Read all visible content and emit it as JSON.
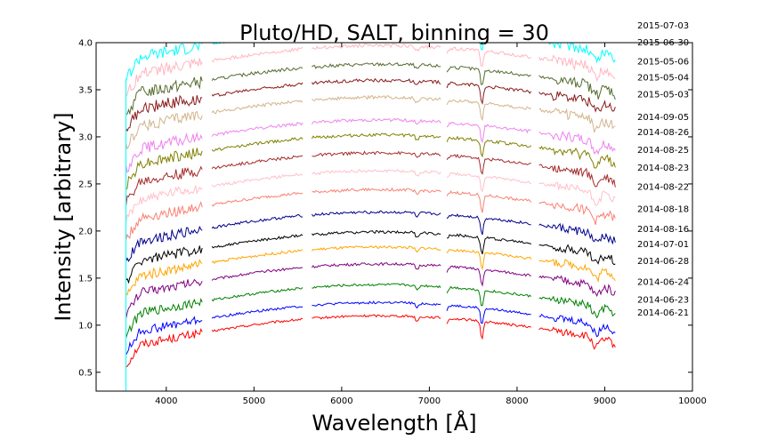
{
  "chart_data": {
    "type": "line",
    "title": "Pluto/HD, SALT, binning = 30",
    "xlabel": "Wavelength [Å]",
    "ylabel": "Intensity [arbitrary]",
    "xlim": [
      3200,
      10000
    ],
    "ylim": [
      0.3,
      4.0
    ],
    "xticks": [
      4000,
      5000,
      6000,
      7000,
      8000,
      9000,
      10000
    ],
    "yticks": [
      0.5,
      1.0,
      1.5,
      2.0,
      2.5,
      3.0,
      3.5,
      4.0
    ],
    "grid": false,
    "gaps": [
      [
        4420,
        4520
      ],
      [
        5560,
        5660
      ],
      [
        7140,
        7200
      ],
      [
        8160,
        8250
      ]
    ],
    "edge": [
      3500,
      9120
    ],
    "series": [
      {
        "name": "2014-06-21",
        "color": "#ff0000",
        "level": 1.1
      },
      {
        "name": "2014-06-23",
        "color": "#0000ff",
        "level": 1.24
      },
      {
        "name": "2014-06-24",
        "color": "#008000",
        "level": 1.43
      },
      {
        "name": "2014-06-28",
        "color": "#800080",
        "level": 1.65
      },
      {
        "name": "2014-07-01",
        "color": "#ffa500",
        "level": 1.83
      },
      {
        "name": "2014-08-16",
        "color": "#000000",
        "level": 1.99
      },
      {
        "name": "2014-08-18",
        "color": "#00008b",
        "level": 2.2
      },
      {
        "name": "2014-08-22",
        "color": "#fa8072",
        "level": 2.44
      },
      {
        "name": "2014-08-23",
        "color": "#ffc0cb",
        "level": 2.64
      },
      {
        "name": "2014-08-25",
        "color": "#a52a2a",
        "level": 2.83
      },
      {
        "name": "2014-08-26",
        "color": "#808000",
        "level": 3.02
      },
      {
        "name": "2014-09-05",
        "color": "#ee82ee",
        "level": 3.18
      },
      {
        "name": "2015-05-03",
        "color": "#d2b48c",
        "level": 3.42
      },
      {
        "name": "2015-05-04",
        "color": "#8b1a1a",
        "level": 3.6
      },
      {
        "name": "2015-05-06",
        "color": "#556b2f",
        "level": 3.77
      },
      {
        "name": "2015-06-30",
        "color": "#ffb6c1",
        "level": 3.97
      },
      {
        "name": "2015-07-03",
        "color": "#00ffff",
        "level": 4.15
      }
    ]
  }
}
